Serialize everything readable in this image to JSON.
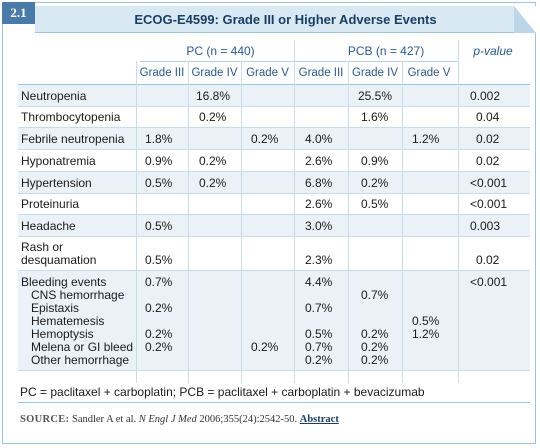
{
  "badge": "2.1",
  "title": "ECOG-E4599: Grade III or Higher Adverse Events",
  "groups": {
    "pc": "PC (n = 440)",
    "pcb": "PCB (n = 427)",
    "pvalue": "p-value"
  },
  "subheaders": [
    "Grade III",
    "Grade IV",
    "Grade V",
    "Grade III",
    "Grade IV",
    "Grade V"
  ],
  "rows": [
    {
      "label": "Neutropenia",
      "pc3": "",
      "pc4": "16.8%",
      "pc5": "",
      "pcb3": "",
      "pcb4": "25.5%",
      "pcb5": "",
      "p": "0.002"
    },
    {
      "label": "Thrombocytopenia",
      "pc3": "",
      "pc4": "0.2%",
      "pc5": "",
      "pcb3": "",
      "pcb4": "1.6%",
      "pcb5": "",
      "p": "0.04"
    },
    {
      "label": "Febrile neutropenia",
      "pc3": "1.8%",
      "pc4": "",
      "pc5": "0.2%",
      "pcb3": "4.0%",
      "pcb4": "",
      "pcb5": "1.2%",
      "p": "0.02"
    },
    {
      "label": "Hyponatremia",
      "pc3": "0.9%",
      "pc4": "0.2%",
      "pc5": "",
      "pcb3": "2.6%",
      "pcb4": "0.9%",
      "pcb5": "",
      "p": "0.02"
    },
    {
      "label": "Hypertension",
      "pc3": "0.5%",
      "pc4": "0.2%",
      "pc5": "",
      "pcb3": "6.8%",
      "pcb4": "0.2%",
      "pcb5": "",
      "p": "<0.001"
    },
    {
      "label": "Proteinuria",
      "pc3": "",
      "pc4": "",
      "pc5": "",
      "pcb3": "2.6%",
      "pcb4": "0.5%",
      "pcb5": "",
      "p": "<0.001"
    },
    {
      "label": "Headache",
      "pc3": "0.5%",
      "pc4": "",
      "pc5": "",
      "pcb3": "3.0%",
      "pcb4": "",
      "pcb5": "",
      "p": "0.003"
    },
    {
      "label": "Rash or\ndesquamation",
      "pc3": "\n0.5%",
      "pc4": "",
      "pc5": "",
      "pcb3": "\n2.3%",
      "pcb4": "",
      "pcb5": "",
      "p": "\n0.02"
    },
    {
      "label": "Bleeding events\n   CNS hemorrhage\n   Epistaxis\n   Hematemesis\n   Hemoptysis\n   Melena or GI bleed\n   Other hemorrhage",
      "pc3": "0.7%\n\n0.2%\n\n0.2%\n0.2%\n",
      "pc4": "",
      "pc5": "\n\n\n\n\n0.2%\n",
      "pcb3": "4.4%\n\n0.7%\n\n0.5%\n0.7%\n0.2%",
      "pcb4": "\n0.7%\n\n\n0.2%\n0.2%\n0.2%",
      "pcb5": "\n\n\n0.5%\n1.2%\n\n",
      "p": "<0.001"
    }
  ],
  "footnote": "PC = paclitaxel + carboplatin; PCB = paclitaxel + carboplatin + bevacizumab",
  "source": {
    "label": "SOURCE:",
    "authors": "Sandler A et al.",
    "journal": "N Engl J Med",
    "citation": "2006;355(24):2542-50.",
    "link": "Abstract"
  }
}
